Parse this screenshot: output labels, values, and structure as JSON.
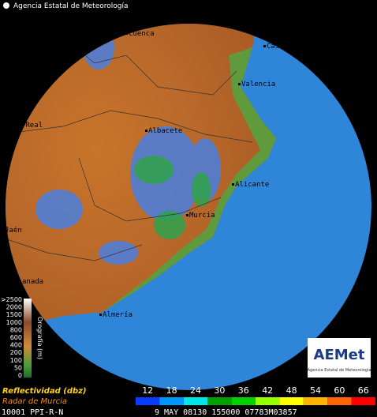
{
  "header": {
    "title": "Agencia Estatal de Meteorología"
  },
  "cities": [
    "Cuenca",
    "Castellón",
    "Valencia",
    "iudad Real",
    "Albacete",
    "Alicante",
    "Murcia",
    "Jaén",
    "anada",
    "Almería"
  ],
  "orography": {
    "title": "Orografía (m)",
    "ticks": [
      ">2500",
      2000,
      1500,
      1000,
      800,
      600,
      400,
      200,
      100,
      50,
      0
    ]
  },
  "reflectivity": {
    "title": "Reflectividad (dbz)",
    "radar": "Radar de Murcia",
    "levels": [
      {
        "value": 12,
        "color": "#0a3cff"
      },
      {
        "value": 18,
        "color": "#0096ff"
      },
      {
        "value": 24,
        "color": "#00e6e6"
      },
      {
        "value": 30,
        "color": "#00a000"
      },
      {
        "value": 36,
        "color": "#00d200"
      },
      {
        "value": 42,
        "color": "#96ff00"
      },
      {
        "value": 48,
        "color": "#ffff00"
      },
      {
        "value": 54,
        "color": "#ffb400"
      },
      {
        "value": 60,
        "color": "#ff6400"
      },
      {
        "value": 66,
        "color": "#ff0000"
      }
    ]
  },
  "logo": {
    "name": "AEMet",
    "subtitle": "Agencia Estatal de Meteorología"
  },
  "footer": {
    "station": "10001 PPI-R-N",
    "timestamp": "9 MAY 08130 155000 07783M03857"
  }
}
